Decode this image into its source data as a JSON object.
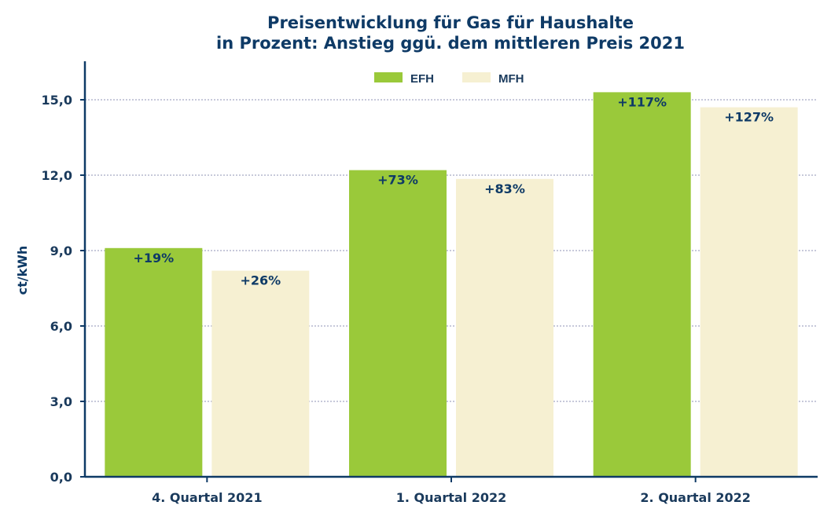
{
  "chart_data": {
    "type": "bar",
    "title": "Preisentwicklung für Gas für Haushalte",
    "subtitle": "in Prozent: Anstieg ggü. dem mittleren Preis 2021",
    "xlabel": "",
    "ylabel": "ct/kWh",
    "categories": [
      "4. Quartal 2021",
      "1. Quartal 2022",
      "2. Quartal 2022"
    ],
    "series": [
      {
        "name": "EFH",
        "color": "#9ac93a",
        "values": [
          9.1,
          12.2,
          15.3
        ],
        "labels": [
          "+19%",
          "+73%",
          "+117%"
        ]
      },
      {
        "name": "MFH",
        "color": "#f6f0d2",
        "values": [
          8.2,
          11.85,
          14.7
        ],
        "labels": [
          "+26%",
          "+83%",
          "+127%"
        ]
      }
    ],
    "ylim": [
      0,
      16.5
    ],
    "yticks": [
      0,
      3,
      6,
      9,
      12,
      15
    ],
    "ytick_labels": [
      "0,0",
      "3,0",
      "6,0",
      "9,0",
      "12,0",
      "15,0"
    ],
    "grid": true,
    "legend": "top-center"
  }
}
